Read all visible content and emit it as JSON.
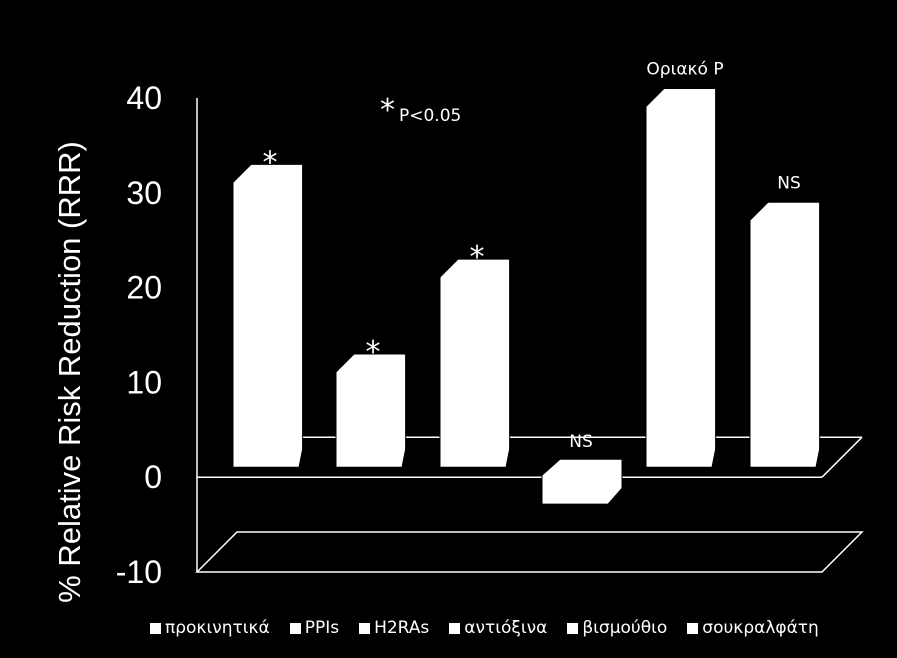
{
  "chart_data": {
    "type": "bar",
    "title": "",
    "ylabel": "% Relative Risk Reduction (RRR)",
    "xlabel": "",
    "ylim": [
      -10,
      40
    ],
    "yticks": [
      "40",
      "30",
      "20",
      "10",
      "0",
      "-10"
    ],
    "categories": [
      "προκινητικά",
      "PPIs",
      "H2RAs",
      "αντιόξινα",
      "βισμούθιο",
      "σουκραλφάτη"
    ],
    "values": [
      33,
      13,
      23,
      -2,
      41,
      29
    ],
    "annotations": [
      "*",
      "*",
      "*",
      "NS",
      "Οριακό  P",
      "NS"
    ],
    "footnote": {
      "symbol": "*",
      "text": "P<0.05"
    },
    "bar_color": "#ffffff",
    "background": "#000000",
    "legend_position": "bottom",
    "grid": false
  }
}
